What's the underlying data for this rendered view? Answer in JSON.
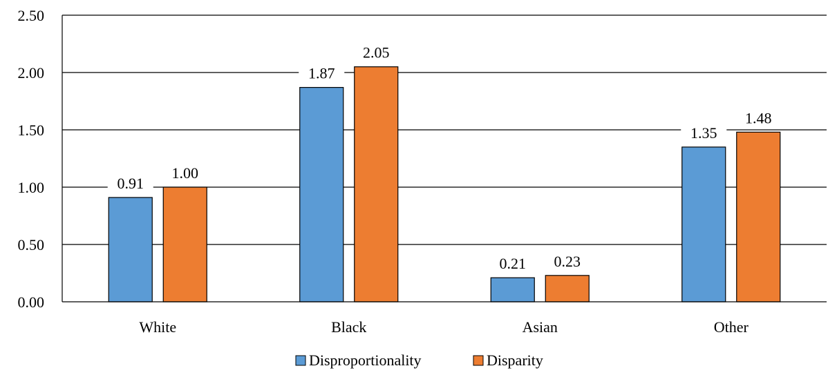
{
  "chart_data": {
    "type": "bar",
    "categories": [
      "White",
      "Black",
      "Asian",
      "Other"
    ],
    "series": [
      {
        "name": "Disproportionality",
        "values": [
          0.91,
          1.87,
          0.21,
          1.35
        ],
        "labels": [
          "0.91",
          "1.87",
          "0.21",
          "1.35"
        ],
        "color": "#5B9BD5"
      },
      {
        "name": "Disparity",
        "values": [
          1.0,
          2.05,
          0.23,
          1.48
        ],
        "labels": [
          "1.00",
          "2.05",
          "0.23",
          "1.48"
        ],
        "color": "#ED7D31"
      }
    ],
    "y_ticks": [
      "0.00",
      "0.50",
      "1.00",
      "1.50",
      "2.00",
      "2.50"
    ],
    "ylim": [
      0,
      2.5
    ],
    "grid": true,
    "legend_position": "bottom",
    "title": "",
    "xlabel": "",
    "ylabel": ""
  }
}
